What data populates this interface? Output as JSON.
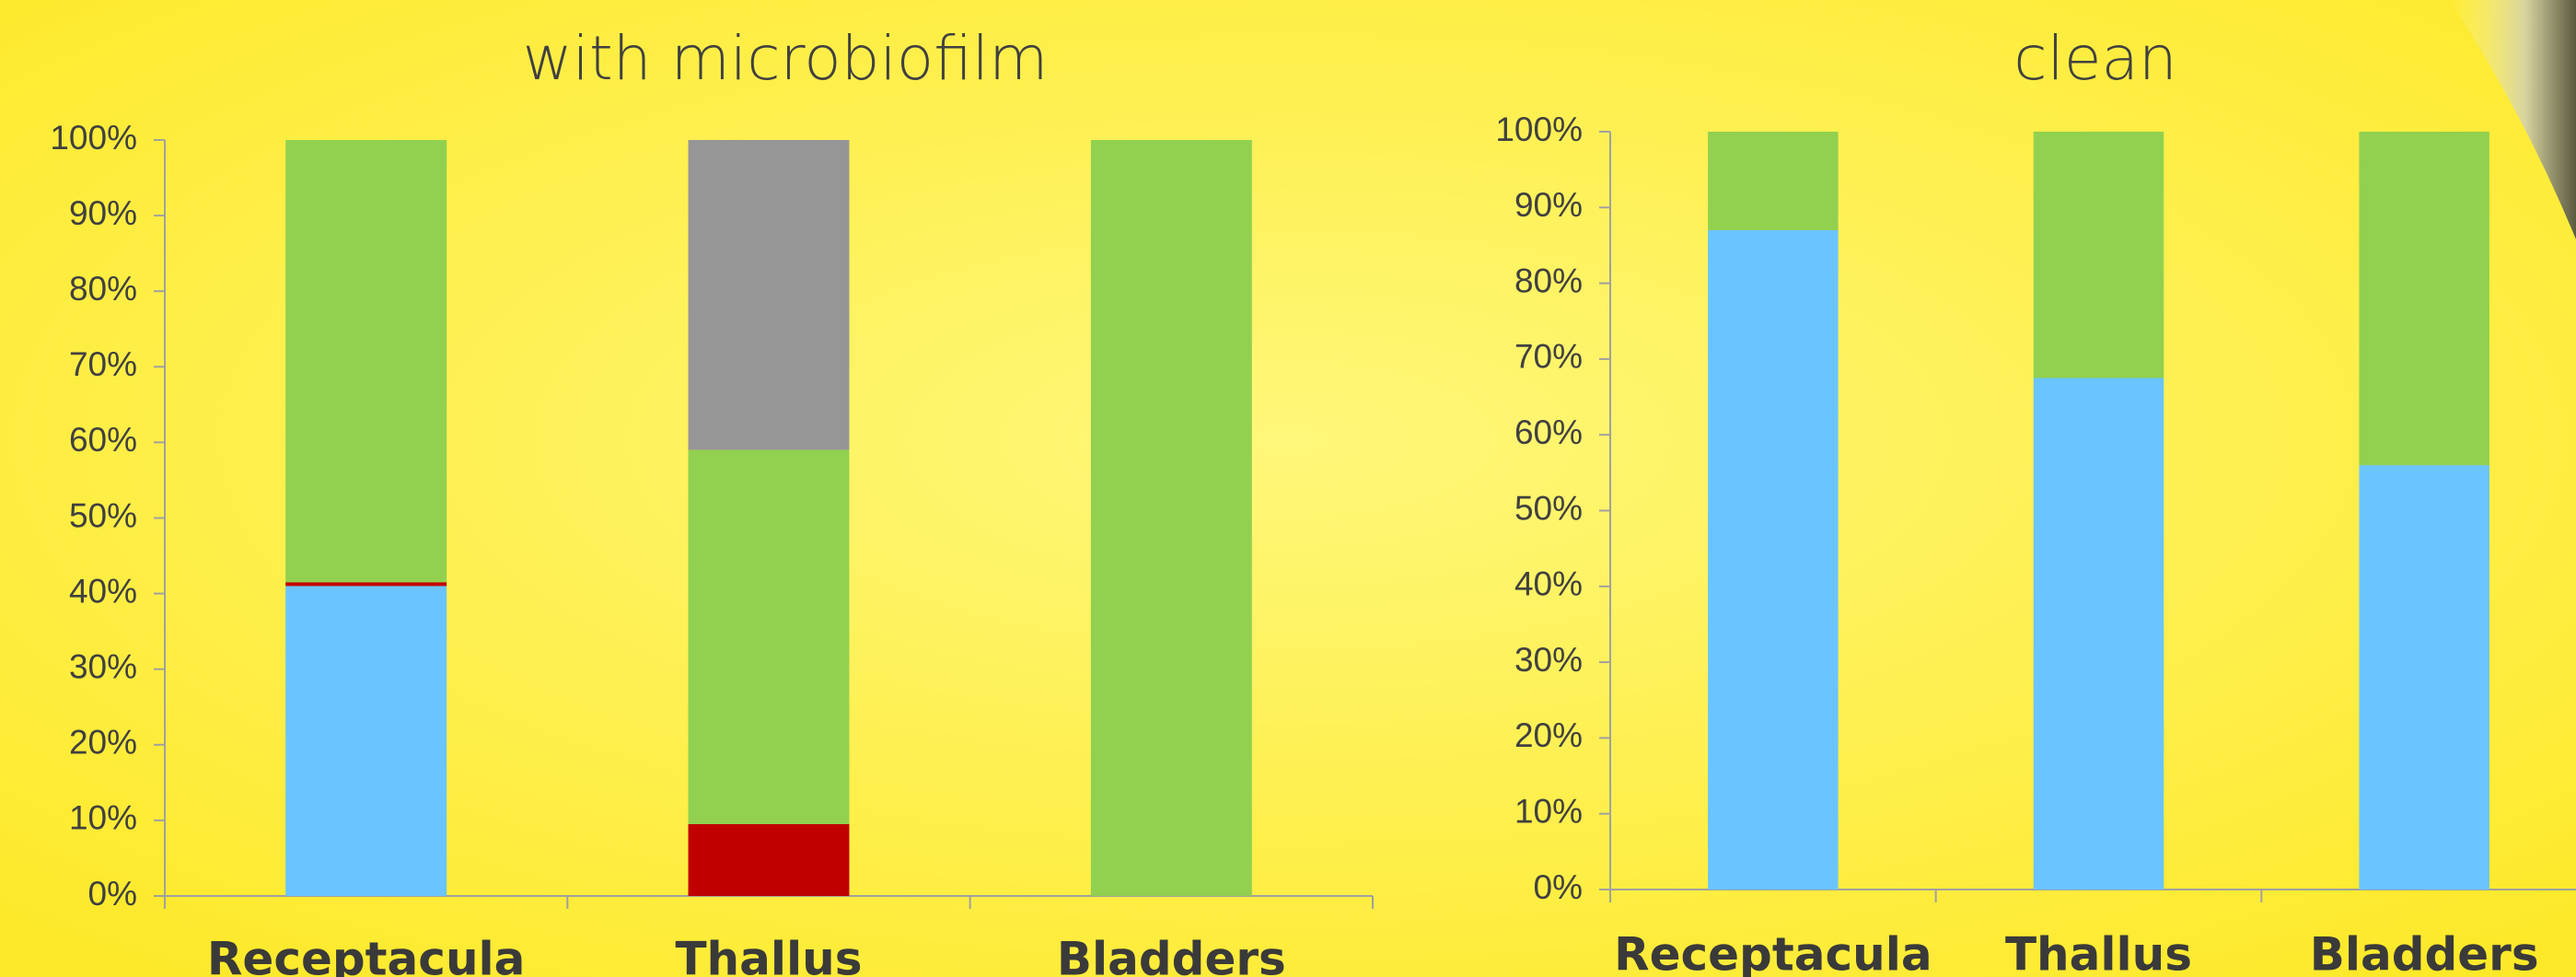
{
  "chart_data": [
    {
      "type": "bar",
      "stacked": true,
      "title": "with microbiofilm",
      "categories": [
        "Receptacula",
        "Thallus",
        "Bladders"
      ],
      "series": [
        {
          "color": "#6ac4ff",
          "values": [
            41,
            0,
            0
          ]
        },
        {
          "color": "#c00000",
          "values": [
            0.5,
            9.5,
            0
          ]
        },
        {
          "color": "#92d050",
          "values": [
            58.5,
            49.5,
            100
          ]
        },
        {
          "color": "#969696",
          "values": [
            0,
            41,
            0
          ]
        }
      ],
      "ylim": [
        0,
        100
      ],
      "yticks": [
        {
          "value": 0,
          "label": "0%"
        },
        {
          "value": 10,
          "label": "10%"
        },
        {
          "value": 20,
          "label": "20%"
        },
        {
          "value": 30,
          "label": "30%"
        },
        {
          "value": 40,
          "label": "40%"
        },
        {
          "value": 50,
          "label": "50%"
        },
        {
          "value": 60,
          "label": "60%"
        },
        {
          "value": 70,
          "label": "70%"
        },
        {
          "value": 80,
          "label": "80%"
        },
        {
          "value": 90,
          "label": "90%"
        },
        {
          "value": 100,
          "label": "100%"
        }
      ],
      "grid": false
    },
    {
      "type": "bar",
      "stacked": true,
      "title": "clean",
      "categories": [
        "Receptacula",
        "Thallus",
        "Bladders"
      ],
      "series": [
        {
          "color": "#6ac4ff",
          "values": [
            87,
            67.5,
            56
          ]
        },
        {
          "color": "#92d050",
          "values": [
            13,
            32.5,
            44
          ]
        }
      ],
      "ylim": [
        0,
        100
      ],
      "yticks": [
        {
          "value": 0,
          "label": "0%"
        },
        {
          "value": 10,
          "label": "10%"
        },
        {
          "value": 20,
          "label": "20%"
        },
        {
          "value": 30,
          "label": "30%"
        },
        {
          "value": 40,
          "label": "40%"
        },
        {
          "value": 50,
          "label": "50%"
        },
        {
          "value": 60,
          "label": "60%"
        },
        {
          "value": 70,
          "label": "70%"
        },
        {
          "value": 80,
          "label": "80%"
        },
        {
          "value": 90,
          "label": "90%"
        },
        {
          "value": 100,
          "label": "100%"
        }
      ],
      "grid": false
    }
  ]
}
